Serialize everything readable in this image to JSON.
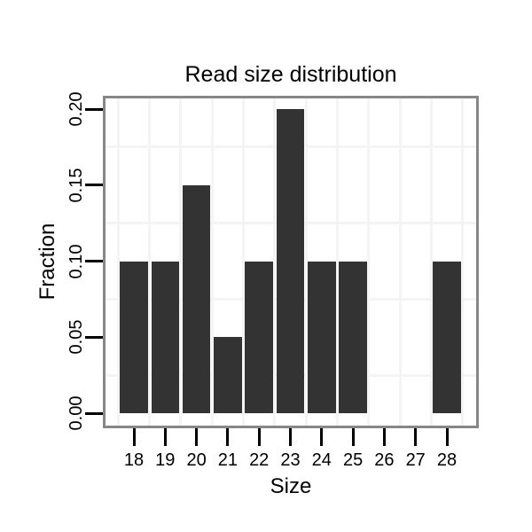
{
  "chart_data": {
    "type": "bar",
    "title": "Read size distribution",
    "xlabel": "Size",
    "ylabel": "Fraction",
    "categories": [
      18,
      19,
      20,
      21,
      22,
      23,
      24,
      25,
      26,
      27,
      28
    ],
    "values": [
      0.1,
      0.1,
      0.15,
      0.05,
      0.1,
      0.2,
      0.1,
      0.1,
      0,
      0,
      0.1
    ],
    "x_tick_labels": [
      "18",
      "19",
      "20",
      "21",
      "22",
      "23",
      "24",
      "25",
      "26",
      "27",
      "28"
    ],
    "y_tick_labels": [
      "0.00",
      "0.05",
      "0.10",
      "0.15",
      "0.20"
    ],
    "y_tick_values": [
      0,
      0.05,
      0.1,
      0.15,
      0.2
    ],
    "ylim": [
      0,
      0.205
    ],
    "grid": "minor gridlines only, midway between ticks",
    "legend": "none",
    "colors": {
      "bar_fill": "#333333",
      "grid_minor": "#f4f4f4",
      "panel_border": "#878787",
      "tick": "#000000",
      "text": "#000000",
      "background": "#ffffff"
    }
  }
}
